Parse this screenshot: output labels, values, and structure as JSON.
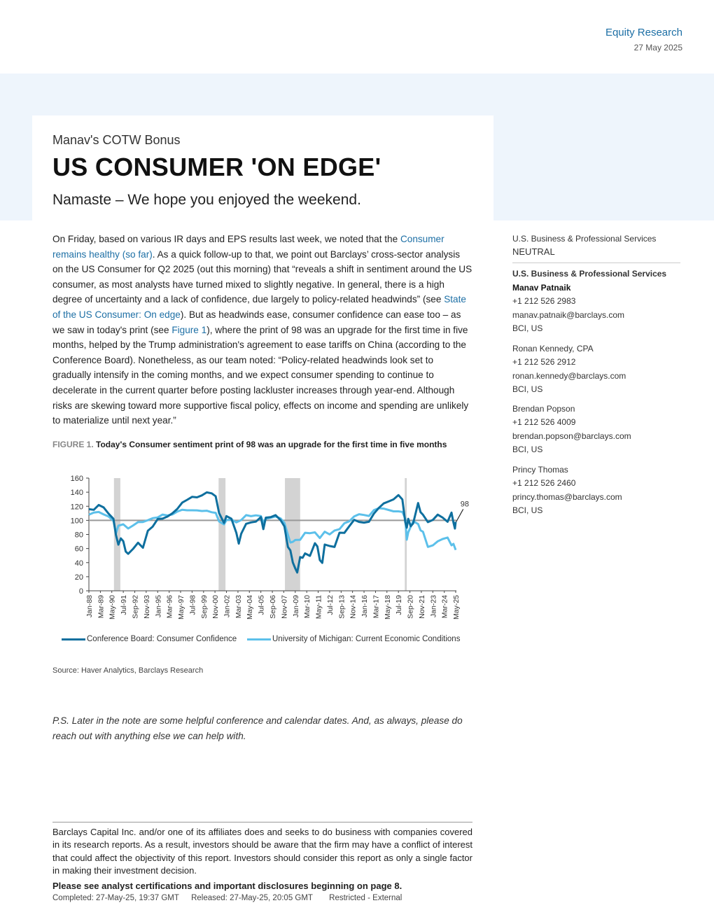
{
  "header": {
    "section": "Equity Research",
    "date": "27 May 2025"
  },
  "title_block": {
    "kicker": "Manav's COTW Bonus",
    "title": "US CONSUMER 'ON EDGE'",
    "subtitle": "Namaste – We hope you enjoyed the weekend."
  },
  "body": {
    "p1": "On Friday, based on various IR days and EPS results last week, we noted that the ",
    "link1": "Consumer remains healthy (so far)",
    "p2": ". As a quick follow-up to that, we point out Barclays’ cross-sector analysis on the US Consumer for Q2 2025 (out this morning) that “reveals a shift in sentiment around the US consumer, as most analysts have turned mixed to slightly negative. In general, there is a high degree of uncertainty and a lack of confidence, due largely to policy-related headwinds” (see ",
    "link2": "State of the US Consumer: On edge",
    "p3": "). But as headwinds ease, consumer confidence can ease too – as we saw in today's print (see ",
    "link3": "Figure 1",
    "p4": "), where the print of 98 was an upgrade for the first time in five months, helped by the Trump administration's agreement to ease tariffs on China (according to the Conference Board). Nonetheless, as our team noted: “Policy-related headwinds look set to gradually intensify in the coming months, and we expect consumer spending to continue to decelerate in the current quarter before posting lackluster increases through year-end. Although risks are skewing toward more supportive fiscal policy, effects on income and spending are unlikely to materialize until next year.”"
  },
  "figure": {
    "label": "FIGURE 1.",
    "caption": "Today's Consumer sentiment print of 98 was an upgrade for the first time in five months",
    "source": "Source: Haver Analytics, Barclays Research"
  },
  "chart_data": {
    "type": "line",
    "title": "",
    "ylim": [
      0,
      160
    ],
    "yticks": [
      0,
      20,
      40,
      60,
      80,
      100,
      120,
      140,
      160
    ],
    "xlim": [
      1988.0,
      2025.4
    ],
    "x_tick_labels": [
      "Jan-88",
      "Mar-89",
      "May-90",
      "Jul-91",
      "Sep-92",
      "Nov-93",
      "Jan-95",
      "Mar-96",
      "May-97",
      "Jul-98",
      "Sep-99",
      "Nov-00",
      "Jan-02",
      "Mar-03",
      "May-04",
      "Jul-05",
      "Sep-06",
      "Nov-07",
      "Jan-09",
      "Mar-10",
      "May-11",
      "Jul-12",
      "Sep-13",
      "Nov-14",
      "Jan-16",
      "Mar-17",
      "May-18",
      "Jul-19",
      "Sep-20",
      "Nov-21",
      "Jan-23",
      "Mar-24",
      "May-25"
    ],
    "x_tick_values": [
      1988.0,
      1989.17,
      1990.33,
      1991.5,
      1992.67,
      1993.83,
      1995.0,
      1996.17,
      1997.33,
      1998.5,
      1999.67,
      2000.83,
      2002.0,
      2003.17,
      2004.33,
      2005.5,
      2006.67,
      2007.83,
      2009.0,
      2010.17,
      2011.33,
      2012.5,
      2013.67,
      2014.83,
      2016.0,
      2017.17,
      2018.33,
      2019.5,
      2020.67,
      2021.83,
      2023.0,
      2024.17,
      2025.33
    ],
    "reference_line": 100,
    "recessions": [
      [
        1990.55,
        1991.2
      ],
      [
        2001.2,
        2001.9
      ],
      [
        2007.95,
        2009.5
      ],
      [
        2020.15,
        2020.35
      ]
    ],
    "annotation": {
      "text": "98",
      "x": 2025.38,
      "y": 98
    },
    "grid": false,
    "legend_position": "bottom",
    "series": [
      {
        "name": "Conference Board: Consumer Confidence",
        "color": "#0e6f9e",
        "x": [
          1988.0,
          1988.5,
          1989.0,
          1989.5,
          1990.0,
          1990.5,
          1990.75,
          1991.0,
          1991.25,
          1991.5,
          1991.75,
          1992.0,
          1992.5,
          1993.0,
          1993.5,
          1994.0,
          1994.5,
          1995.0,
          1995.5,
          1996.0,
          1996.5,
          1997.0,
          1997.5,
          1998.0,
          1998.5,
          1999.0,
          1999.5,
          2000.0,
          2000.5,
          2000.9,
          2001.25,
          2001.75,
          2002.0,
          2002.5,
          2003.0,
          2003.25,
          2003.5,
          2004.0,
          2004.5,
          2005.0,
          2005.5,
          2005.75,
          2006.0,
          2006.5,
          2007.0,
          2007.5,
          2007.9,
          2008.25,
          2008.5,
          2008.75,
          2009.0,
          2009.2,
          2009.5,
          2009.75,
          2010.0,
          2010.5,
          2011.0,
          2011.25,
          2011.5,
          2011.75,
          2012.0,
          2012.5,
          2013.0,
          2013.5,
          2014.0,
          2014.5,
          2015.0,
          2015.5,
          2016.0,
          2016.5,
          2017.0,
          2017.5,
          2018.0,
          2018.5,
          2019.0,
          2019.5,
          2019.9,
          2020.2,
          2020.35,
          2020.5,
          2020.75,
          2021.0,
          2021.5,
          2021.75,
          2022.0,
          2022.5,
          2023.0,
          2023.5,
          2024.0,
          2024.5,
          2024.9,
          2025.1,
          2025.25,
          2025.33
        ],
        "y": [
          116,
          114,
          120,
          116,
          107,
          100,
          78,
          65,
          75,
          72,
          58,
          55,
          62,
          70,
          62,
          85,
          90,
          100,
          100,
          103,
          108,
          115,
          125,
          130,
          135,
          135,
          138,
          142,
          140,
          135,
          110,
          95,
          104,
          100,
          80,
          65,
          80,
          95,
          98,
          100,
          107,
          90,
          106,
          106,
          108,
          100,
          90,
          60,
          55,
          38,
          30,
          25,
          48,
          48,
          55,
          52,
          70,
          65,
          45,
          40,
          65,
          62,
          60,
          80,
          80,
          90,
          100,
          98,
          98,
          100,
          112,
          120,
          126,
          128,
          130,
          135,
          128,
          95,
          87,
          100,
          90,
          95,
          125,
          113,
          110,
          100,
          103,
          110,
          105,
          98,
          110,
          95,
          86,
          98
        ]
      },
      {
        "name": "University of Michigan: Current Economic Conditions",
        "color": "#5cc0ea",
        "x": [
          1988.0,
          1988.5,
          1989.0,
          1989.5,
          1990.0,
          1990.5,
          1990.75,
          1991.0,
          1991.5,
          1992.0,
          1992.5,
          1993.0,
          1993.5,
          1994.0,
          1994.5,
          1995.0,
          1995.5,
          1996.0,
          1996.5,
          1997.0,
          1997.5,
          1998.0,
          1998.5,
          1999.0,
          1999.5,
          2000.0,
          2000.5,
          2000.9,
          2001.25,
          2001.75,
          2002.0,
          2002.5,
          2003.0,
          2003.5,
          2004.0,
          2004.5,
          2005.0,
          2005.5,
          2005.75,
          2006.0,
          2006.5,
          2007.0,
          2007.5,
          2007.9,
          2008.25,
          2008.5,
          2008.75,
          2009.0,
          2009.5,
          2010.0,
          2010.5,
          2011.0,
          2011.5,
          2012.0,
          2012.5,
          2013.0,
          2013.5,
          2014.0,
          2014.5,
          2015.0,
          2015.5,
          2016.0,
          2016.5,
          2017.0,
          2017.5,
          2018.0,
          2018.5,
          2019.0,
          2019.5,
          2019.9,
          2020.2,
          2020.35,
          2020.5,
          2021.0,
          2021.5,
          2021.75,
          2022.0,
          2022.5,
          2023.0,
          2023.5,
          2024.0,
          2024.5,
          2024.9,
          2025.1,
          2025.33
        ],
        "y": [
          108,
          110,
          110,
          106,
          103,
          97,
          80,
          92,
          95,
          90,
          95,
          100,
          100,
          102,
          104,
          104,
          107,
          105,
          106,
          110,
          113,
          113,
          114,
          115,
          115,
          116,
          114,
          113,
          100,
          95,
          100,
          100,
          95,
          98,
          105,
          104,
          106,
          106,
          98,
          104,
          106,
          108,
          105,
          98,
          80,
          68,
          68,
          70,
          70,
          80,
          80,
          82,
          75,
          85,
          82,
          88,
          90,
          98,
          100,
          106,
          108,
          106,
          104,
          112,
          115,
          115,
          114,
          113,
          114,
          114,
          105,
          75,
          85,
          100,
          95,
          85,
          82,
          60,
          62,
          68,
          72,
          75,
          65,
          68,
          58
        ]
      }
    ]
  },
  "ps": "P.S. Later in the note are some helpful conference and calendar dates. And, as always, please do reach out with anything else we can help with.",
  "footer": {
    "disclaimer": "Barclays Capital Inc. and/or one of its affiliates does and seeks to do business with companies covered in its research reports. As a result, investors should be aware that the firm may have a conflict of interest that could affect the objectivity of this report. Investors should consider this report as only a single factor in making their investment decision.",
    "certifications": "Please see analyst certifications and important disclosures beginning on page 8.",
    "completed": "Completed: 27-May-25, 19:37 GMT",
    "released": "Released: 27-May-25, 20:05 GMT",
    "restricted": "Restricted - External"
  },
  "sidebar": {
    "industry": "U.S. Business & Professional Services",
    "rating": "NEUTRAL",
    "team": "U.S. Business & Professional Services",
    "analysts": [
      {
        "name": "Manav Patnaik",
        "phone": "+1 212 526 2983",
        "email": "manav.patnaik@barclays.com",
        "entity": "BCI, US"
      },
      {
        "name": "Ronan Kennedy, CPA",
        "phone": "+1 212 526 2912",
        "email": "ronan.kennedy@barclays.com",
        "entity": "BCI, US"
      },
      {
        "name": "Brendan Popson",
        "phone": "+1 212 526 4009",
        "email": "brendan.popson@barclays.com",
        "entity": "BCI, US"
      },
      {
        "name": "Princy Thomas",
        "phone": "+1 212 526 2460",
        "email": "princy.thomas@barclays.com",
        "entity": "BCI, US"
      }
    ]
  }
}
